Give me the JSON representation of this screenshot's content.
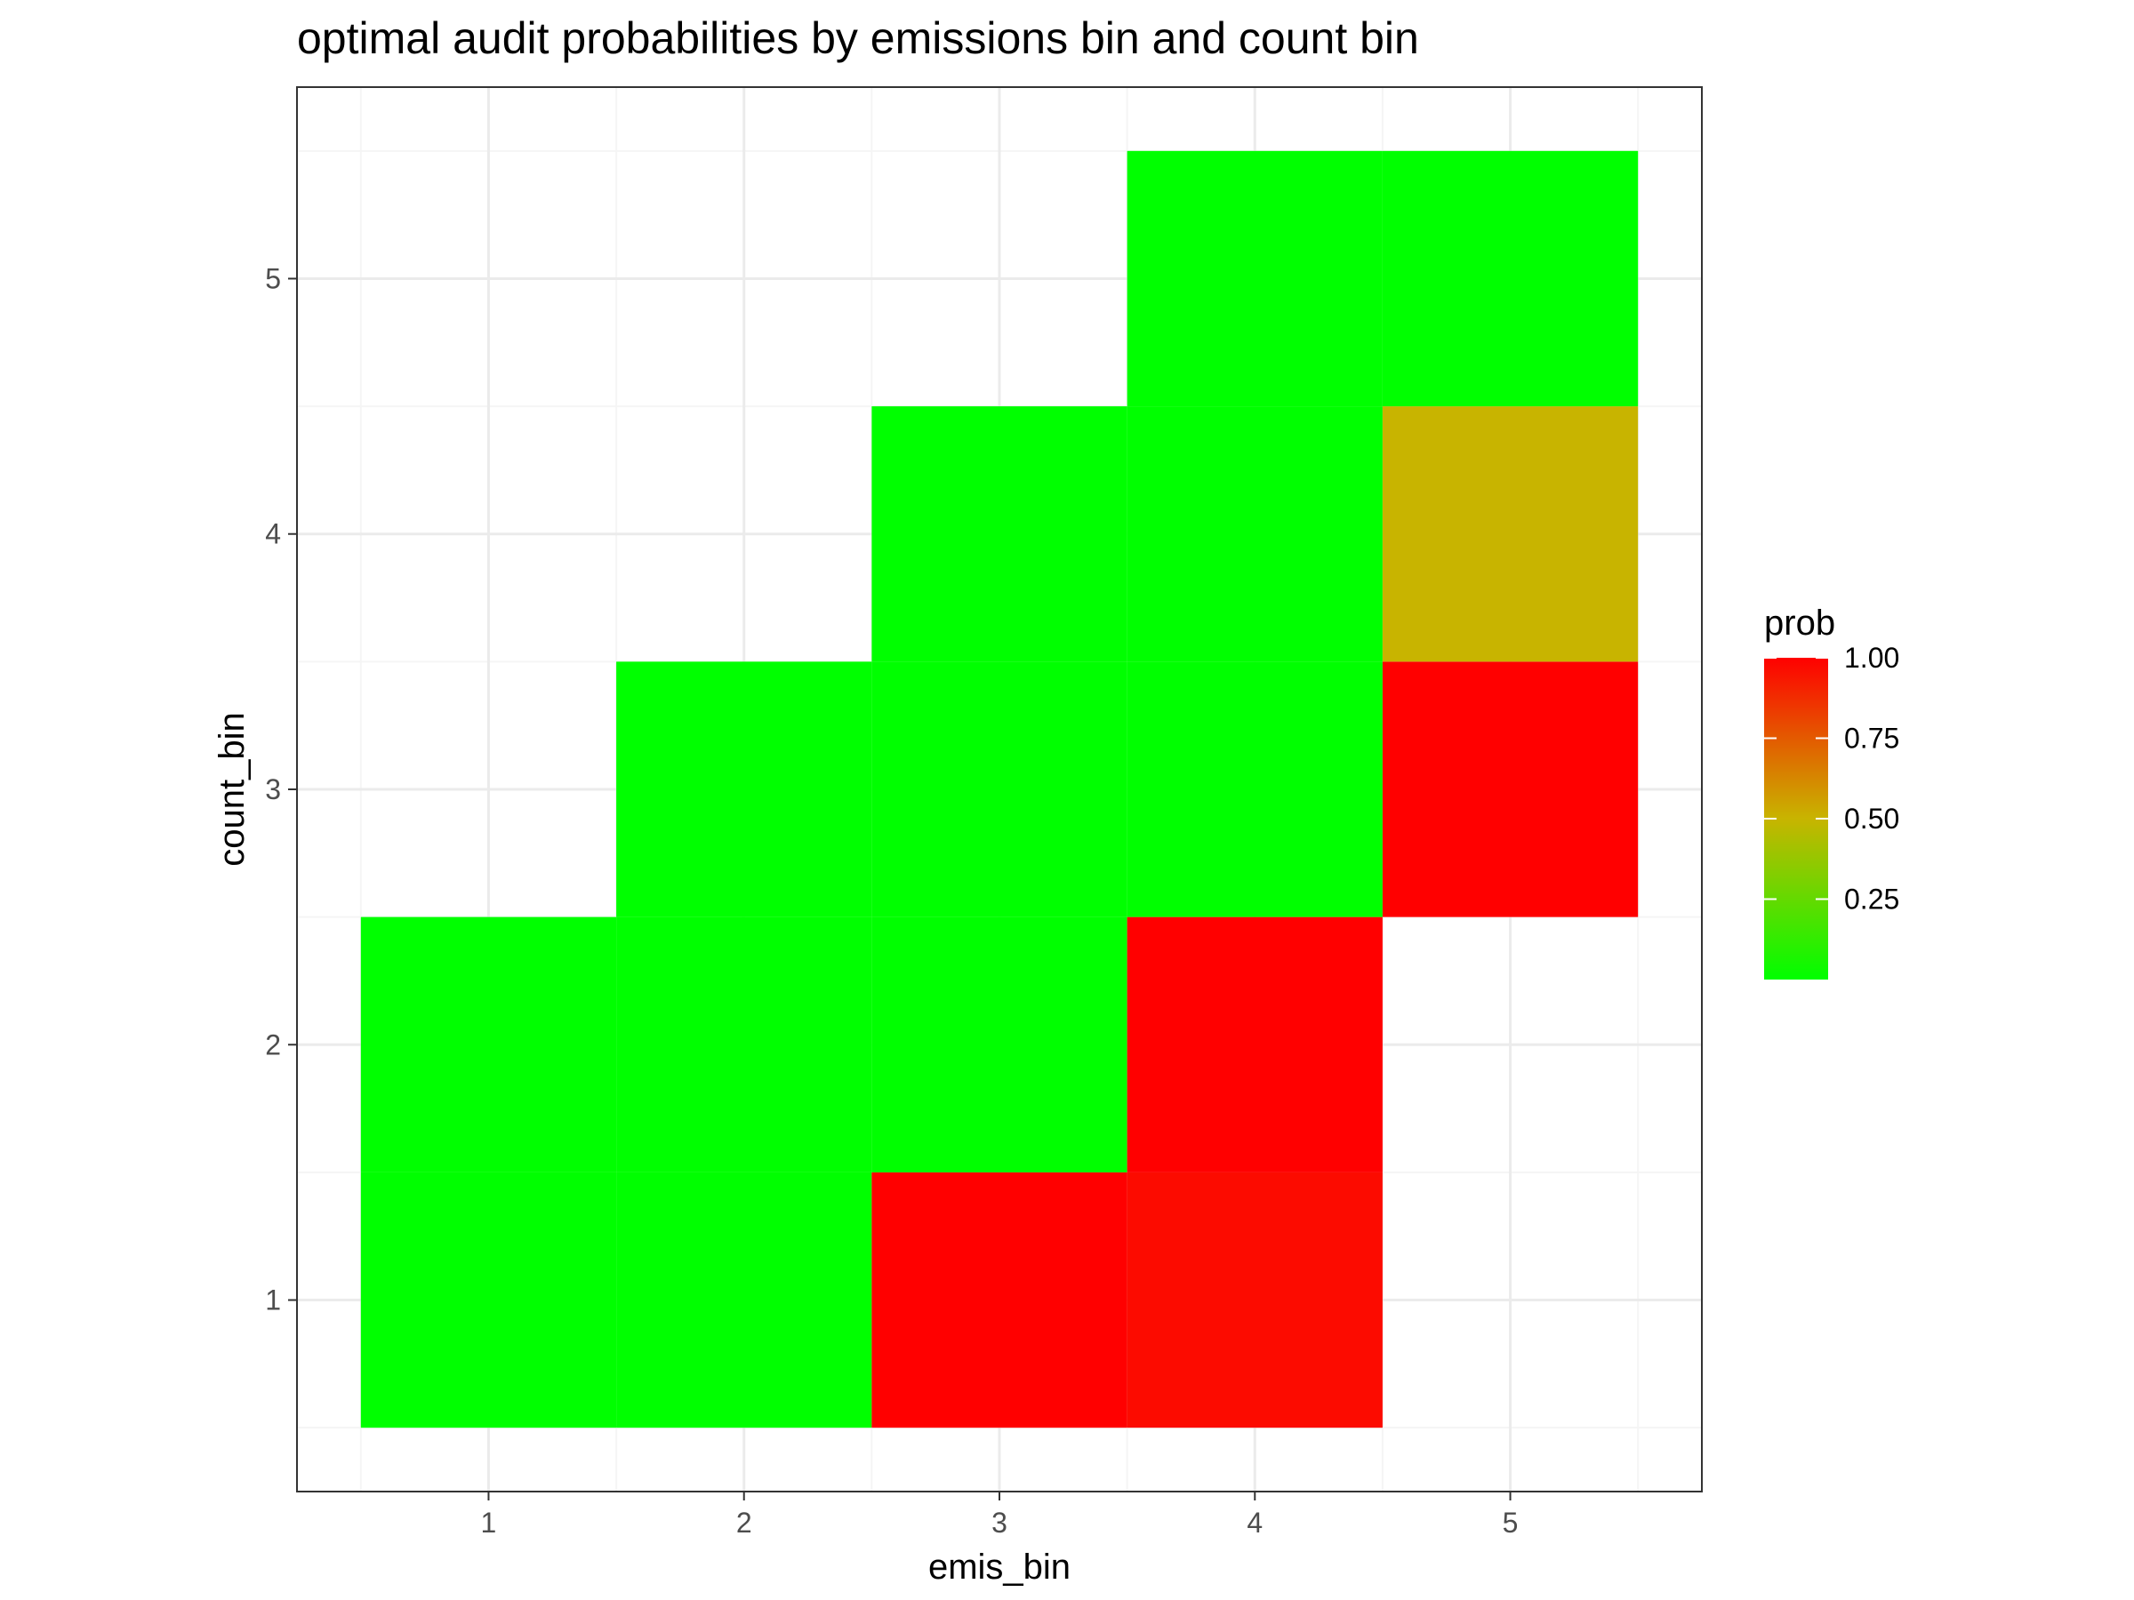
{
  "chart_data": {
    "type": "heatmap",
    "title": "optimal audit probabilities by emissions bin and count bin",
    "xlabel": "emis_bin",
    "ylabel": "count_bin",
    "x_ticks": [
      "1",
      "2",
      "3",
      "4",
      "5"
    ],
    "y_ticks": [
      "1",
      "2",
      "3",
      "4",
      "5"
    ],
    "xlim": [
      0.25,
      5.75
    ],
    "ylim": [
      0.25,
      5.75
    ],
    "grid": true,
    "legend": {
      "title": "prob",
      "position": "right",
      "ticks": [
        {
          "value": 1.0,
          "label": "1.00"
        },
        {
          "value": 0.75,
          "label": "0.75"
        },
        {
          "value": 0.5,
          "label": "0.50"
        },
        {
          "value": 0.25,
          "label": "0.25"
        }
      ],
      "range": [
        0.0,
        1.0
      ],
      "low_color": "#00ff00",
      "high_color": "#ff0000"
    },
    "cells": [
      {
        "x": 1,
        "y": 1,
        "prob": 0.0
      },
      {
        "x": 1,
        "y": 2,
        "prob": 0.0
      },
      {
        "x": 2,
        "y": 1,
        "prob": 0.0
      },
      {
        "x": 2,
        "y": 2,
        "prob": 0.0
      },
      {
        "x": 2,
        "y": 3,
        "prob": 0.0
      },
      {
        "x": 3,
        "y": 1,
        "prob": 1.0
      },
      {
        "x": 3,
        "y": 2,
        "prob": 0.0
      },
      {
        "x": 3,
        "y": 3,
        "prob": 0.0
      },
      {
        "x": 3,
        "y": 4,
        "prob": 0.0
      },
      {
        "x": 4,
        "y": 1,
        "prob": 0.97
      },
      {
        "x": 4,
        "y": 2,
        "prob": 1.0
      },
      {
        "x": 4,
        "y": 3,
        "prob": 0.0
      },
      {
        "x": 4,
        "y": 4,
        "prob": 0.0
      },
      {
        "x": 4,
        "y": 5,
        "prob": 0.0
      },
      {
        "x": 5,
        "y": 3,
        "prob": 1.0
      },
      {
        "x": 5,
        "y": 4,
        "prob": 0.5
      },
      {
        "x": 5,
        "y": 5,
        "prob": 0.0
      }
    ]
  },
  "colors": {
    "panel_border": "#333333",
    "grid_major": "#ebebeb",
    "grid_minor": "#f5f5f5",
    "tick_mark": "#333333"
  }
}
